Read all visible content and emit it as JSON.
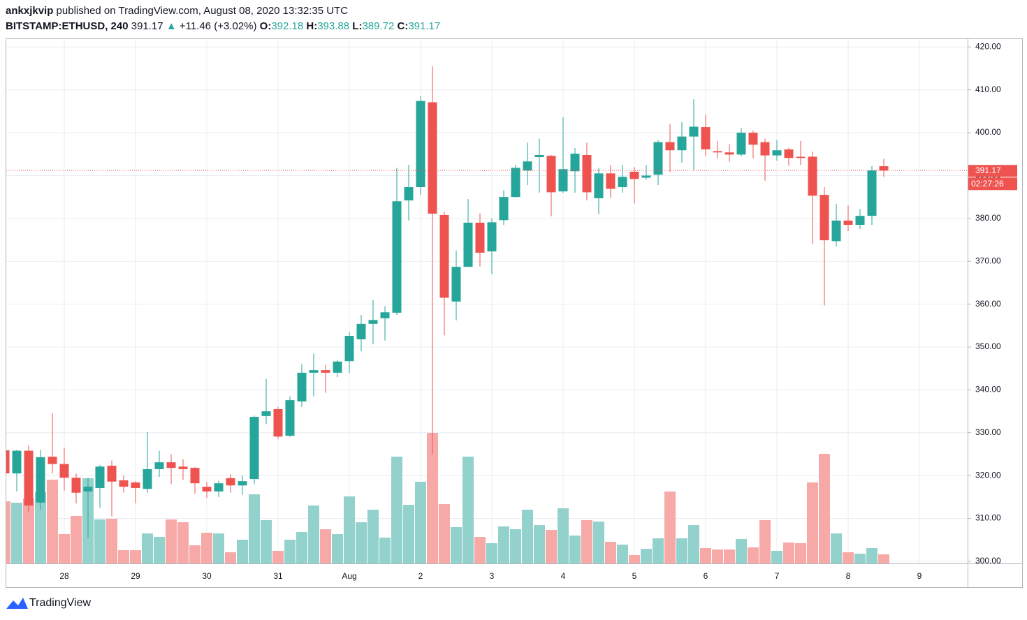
{
  "header": {
    "author": "ankxjkvip",
    "published": "published on TradingView.com, August 08, 2020 13:32:35 UTC",
    "symbol": "BITSTAMP:ETHUSD, 240",
    "change": "+11.46 (+3.02%)",
    "ohlc_labels": [
      "O:",
      "H:",
      "L:",
      "C:"
    ]
  },
  "footer": {
    "brand": "TradingView"
  },
  "chart_data": {
    "type": "candlestick",
    "categories": [
      null,
      null,
      null,
      null,
      null,
      "28",
      null,
      null,
      null,
      null,
      null,
      "29",
      null,
      null,
      null,
      null,
      null,
      "30",
      null,
      null,
      null,
      null,
      null,
      "31",
      null,
      null,
      null,
      null,
      null,
      "Aug",
      null,
      null,
      null,
      null,
      null,
      "2",
      null,
      null,
      null,
      null,
      null,
      "3",
      null,
      null,
      null,
      null,
      null,
      "4",
      null,
      null,
      null,
      null,
      null,
      "5",
      null,
      null,
      null,
      null,
      null,
      "6",
      null,
      null,
      null,
      null,
      null,
      "7",
      null,
      null,
      null,
      null,
      null,
      "8",
      null,
      null,
      null,
      null,
      null,
      "9",
      null,
      null,
      null
    ],
    "open": [
      325.9,
      320.5,
      325.8,
      313.7,
      324.4,
      322.7,
      319.5,
      316.3,
      317.1,
      322.3,
      318.9,
      318.4,
      316.9,
      321.5,
      323.1,
      322.1,
      321.8,
      317.4,
      316.3,
      319.4,
      317.7,
      319.2,
      333.9,
      335.5,
      329.3,
      337.3,
      344.0,
      344.6,
      344.0,
      346.7,
      351.8,
      355.4,
      356.7,
      358.0,
      384.2,
      387.3,
      407.1,
      380.8,
      360.6,
      368.7,
      379.0,
      372.3,
      379.6,
      385.0,
      391.2,
      394.3,
      394.6,
      386.3,
      391.0,
      394.8,
      384.7,
      390.5,
      387.3,
      390.9,
      389.5,
      390.2,
      397.8,
      395.9,
      399.1,
      401.3,
      395.7,
      395.4,
      394.9,
      400.0,
      397.8,
      394.7,
      396.1,
      394.4,
      394.4,
      385.5,
      374.7,
      379.5,
      378.5,
      380.6,
      392.18,
      null,
      null,
      null,
      null,
      null,
      null
    ],
    "high": [
      326.5,
      326,
      327,
      326,
      334.5,
      326.5,
      320.5,
      319.5,
      322.5,
      323.5,
      320,
      318.7,
      330.2,
      325.8,
      325,
      323.8,
      322,
      318.5,
      318.8,
      320.3,
      320,
      334,
      342.5,
      336,
      338.5,
      346,
      348.5,
      345.8,
      347,
      353.5,
      357.5,
      361,
      359.5,
      391.8,
      392.5,
      408.5,
      415.5,
      381.5,
      372.5,
      384.5,
      381.2,
      380,
      386.6,
      392.5,
      397.7,
      398.6,
      394.8,
      403.6,
      396.4,
      397.7,
      391.8,
      392.5,
      392.5,
      392,
      392.5,
      398.3,
      402,
      402.5,
      407.8,
      404.2,
      398,
      397.3,
      401.1,
      400.5,
      398.6,
      398.3,
      396.5,
      398.1,
      395.6,
      387.3,
      383.4,
      383,
      382.2,
      392.2,
      393.88,
      null,
      null,
      null,
      null,
      null,
      null
    ],
    "low": [
      318,
      316.3,
      311.5,
      312,
      320.5,
      316.5,
      313.5,
      305.5,
      312.5,
      310.5,
      316,
      313.5,
      316,
      319.7,
      318,
      319,
      315.8,
      314.8,
      315,
      316,
      315.5,
      318,
      332,
      328.6,
      329,
      336,
      338.5,
      339.3,
      343,
      343.9,
      349,
      350.6,
      351.5,
      357.5,
      379.5,
      385.5,
      325,
      352.7,
      356.2,
      369,
      368.8,
      367,
      378.5,
      384.8,
      387.8,
      386,
      380.5,
      386,
      386,
      384.2,
      381,
      384.8,
      386,
      383.5,
      389,
      387.8,
      390.8,
      393,
      391.2,
      394.5,
      394,
      393.2,
      394.5,
      394,
      388.8,
      393.5,
      392.3,
      392.5,
      374,
      359.7,
      373.5,
      377,
      377.5,
      378.5,
      389.72,
      null,
      null,
      null,
      null,
      null,
      null
    ],
    "close": [
      320.5,
      325.8,
      313.0,
      324.3,
      322.7,
      319.5,
      316.0,
      317.4,
      322.1,
      318.6,
      317.4,
      317.1,
      321.5,
      323.1,
      321.8,
      321.5,
      318.2,
      316.3,
      318.2,
      317.7,
      318.7,
      333.7,
      335.0,
      329.1,
      337.6,
      344.0,
      344.6,
      344.0,
      346.6,
      352.6,
      355.4,
      356.3,
      358.1,
      384.0,
      387.3,
      407.4,
      381.1,
      361.5,
      368.7,
      379.0,
      372.0,
      379.1,
      385.0,
      391.8,
      393.3,
      394.8,
      386.1,
      391.5,
      395.1,
      386.1,
      390.5,
      386.9,
      389.7,
      389.2,
      390.0,
      397.8,
      395.9,
      399.1,
      401.4,
      396.1,
      395.4,
      394.9,
      400.0,
      397.2,
      394.7,
      395.9,
      394.1,
      394.1,
      385.3,
      374.9,
      379.5,
      378.5,
      380.6,
      391.2,
      391.17,
      null,
      null,
      null,
      null,
      null,
      null
    ],
    "volume": [
      89,
      87,
      93,
      102,
      120,
      42,
      68,
      122,
      63,
      64,
      19,
      19,
      43,
      38,
      63,
      59,
      26,
      44,
      43,
      16,
      34,
      99,
      62,
      18,
      34,
      45,
      83,
      49,
      42,
      96,
      59,
      77,
      37,
      153,
      84,
      117,
      187,
      85,
      52,
      153,
      38,
      29,
      53,
      49,
      77,
      55,
      48,
      79,
      40,
      62,
      60,
      31,
      27,
      12,
      21,
      36,
      103,
      36,
      55,
      22,
      20,
      20,
      35,
      23,
      62,
      18,
      30,
      29,
      116,
      157,
      43,
      16,
      14,
      22,
      13,
      null,
      null,
      null,
      null,
      null,
      null
    ],
    "up_color": "#26a69a",
    "down_color": "#ef5350",
    "volume_up_color": "#93d2cc",
    "volume_down_color": "#f7a9a7",
    "ylim": [
      299.5,
      422
    ],
    "yticks": [
      {
        "value": 300,
        "label": "300.00"
      },
      {
        "value": 310,
        "label": "310.00"
      },
      {
        "value": 320,
        "label": "320.00"
      },
      {
        "value": 330,
        "label": "330.00"
      },
      {
        "value": 340,
        "label": "340.00"
      },
      {
        "value": 350,
        "label": "350.00"
      },
      {
        "value": 360,
        "label": "360.00"
      },
      {
        "value": 370,
        "label": "370.00"
      },
      {
        "value": 380,
        "label": "380.00"
      },
      {
        "value": 390,
        "label": "390.00"
      },
      {
        "value": 400,
        "label": "400.00"
      },
      {
        "value": 410,
        "label": "410.00"
      },
      {
        "value": 420,
        "label": "420.00"
      }
    ],
    "grid": true,
    "countdown": "02:27:26"
  }
}
